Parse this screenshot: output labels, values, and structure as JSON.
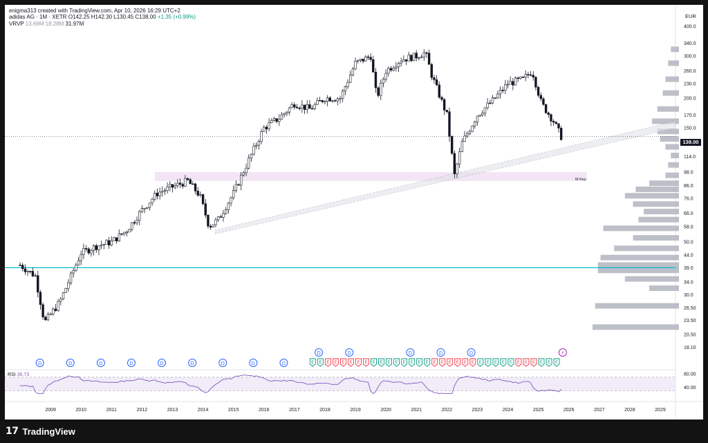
{
  "header": {
    "created_by": "enigma313 created with TradingView.com, Apr 10, 2026 16:29 UTC+2",
    "symbol": "adidas AG · 1M · XETR",
    "open": "O142.25",
    "high": "H142.30",
    "low": "L130.45",
    "close": "C138.00",
    "change": "+1.35 (+0.99%)",
    "vrvp_label": "VRVP",
    "vrvp_v1": "13.69M",
    "vrvp_v2": "18.28M",
    "vrvp_v3": "31.97M"
  },
  "price_axis": {
    "currency": "EUR",
    "last_price": "138.00",
    "ticks": [
      "400.0",
      "340.0",
      "300.0",
      "260.0",
      "230.0",
      "200.0",
      "170.0",
      "150.0",
      "130.0",
      "114.0",
      "98.0",
      "86.0",
      "76.0",
      "66.0",
      "58.0",
      "50.0",
      "44.0",
      "39.0",
      "34.0",
      "30.0",
      "26.50",
      "23.50",
      "20.50",
      "18.10"
    ]
  },
  "time_axis": {
    "years": [
      "2009",
      "2010",
      "2011",
      "2012",
      "2013",
      "2014",
      "2015",
      "2016",
      "2017",
      "2018",
      "2019",
      "2020",
      "2021",
      "2022",
      "2023",
      "2024",
      "2025",
      "2026",
      "2027",
      "2028",
      "2029"
    ]
  },
  "annotations": {
    "key_zone_label": "M Key"
  },
  "rsi": {
    "label": "RSI",
    "value": "36.73",
    "ticks": [
      "80.00",
      "40.00"
    ]
  },
  "events": {
    "dividend_glyph": "D",
    "earnings_glyph": "E",
    "split_glyph": "⚡"
  },
  "footer": {
    "brand": "TradingView",
    "logo_glyph": "17"
  },
  "colors": {
    "background": "#ffffff",
    "frame": "#131313",
    "candle": "#131722",
    "support_line": "#00bcd4",
    "key_zone": "#f3e5f5",
    "rsi_line": "#7e57c2",
    "rsi_fill": "#ede7f6",
    "volume_profile": "#b2b5be",
    "dividend": "#2962ff",
    "earnings_up": "#089981",
    "earnings_down": "#f23645"
  },
  "chart_data": {
    "type": "line",
    "title": "adidas AG · 1M · XETR",
    "ylabel": "EUR",
    "scale": "log",
    "ylim": [
      17,
      430
    ],
    "x": [
      2008.5,
      2009.0,
      2009.3,
      2009.8,
      2010.5,
      2011.0,
      2011.5,
      2012.0,
      2012.5,
      2013.0,
      2013.5,
      2014.0,
      2014.4,
      2014.7,
      2015.0,
      2015.5,
      2016.0,
      2016.5,
      2017.0,
      2017.5,
      2018.0,
      2018.5,
      2019.0,
      2019.5,
      2020.0,
      2020.2,
      2020.5,
      2021.0,
      2021.5,
      2021.8,
      2022.0,
      2022.5,
      2022.75,
      2023.0,
      2023.5,
      2024.0,
      2024.5,
      2025.0,
      2025.3,
      2025.6,
      2026.0,
      2026.25
    ],
    "series": [
      {
        "values": [
          40,
          36,
          23,
          28,
          45,
          48,
          50,
          56,
          68,
          80,
          85,
          90,
          78,
          58,
          62,
          80,
          110,
          150,
          165,
          190,
          180,
          200,
          200,
          280,
          300,
          200,
          260,
          290,
          300,
          310,
          250,
          170,
          95,
          130,
          170,
          195,
          230,
          240,
          260,
          190,
          160,
          138
        ]
      }
    ],
    "volume_profile": [
      {
        "price": 22,
        "volume": 31.97
      },
      {
        "price": 27,
        "volume": 31.0
      },
      {
        "price": 32,
        "volume": 11.0
      },
      {
        "price": 35,
        "volume": 20.0
      },
      {
        "price": 38,
        "volume": 30.0
      },
      {
        "price": 40,
        "volume": 30.0
      },
      {
        "price": 43,
        "volume": 29.0
      },
      {
        "price": 47,
        "volume": 24.0
      },
      {
        "price": 52,
        "volume": 17.0
      },
      {
        "price": 57,
        "volume": 28.0
      },
      {
        "price": 62,
        "volume": 15.0
      },
      {
        "price": 67,
        "volume": 13.0
      },
      {
        "price": 72,
        "volume": 17.0
      },
      {
        "price": 78,
        "volume": 20.0
      },
      {
        "price": 83,
        "volume": 16.0
      },
      {
        "price": 88,
        "volume": 11.0
      },
      {
        "price": 95,
        "volume": 5.0
      },
      {
        "price": 105,
        "volume": 4.0
      },
      {
        "price": 115,
        "volume": 3.0
      },
      {
        "price": 125,
        "volume": 5.0
      },
      {
        "price": 135,
        "volume": 7.0
      },
      {
        "price": 145,
        "volume": 8.0
      },
      {
        "price": 160,
        "volume": 10.0
      },
      {
        "price": 180,
        "volume": 8.0
      },
      {
        "price": 210,
        "volume": 6.0
      },
      {
        "price": 240,
        "volume": 5.0
      },
      {
        "price": 280,
        "volume": 4.0
      },
      {
        "price": 320,
        "volume": 3.0
      }
    ]
  }
}
